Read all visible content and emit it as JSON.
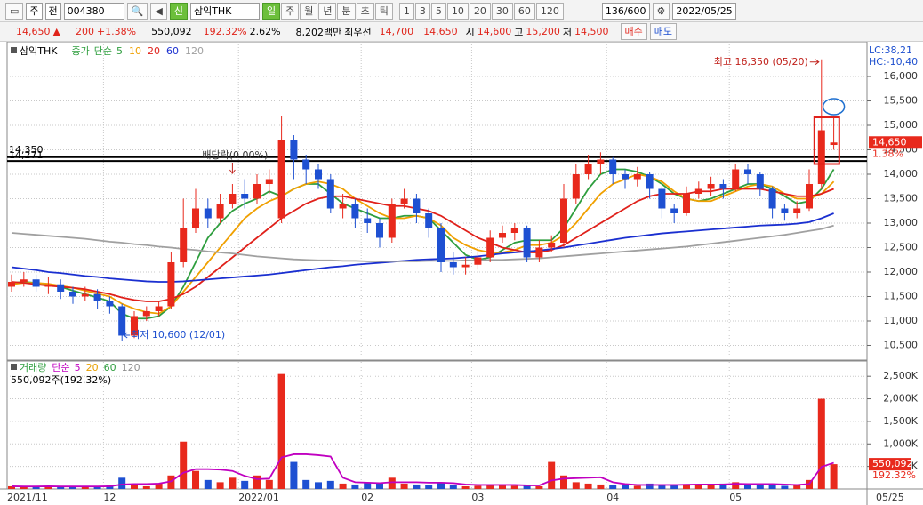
{
  "toolbar": {
    "period": "주",
    "prev": "전",
    "code": "004380",
    "badge": "신",
    "name": "삼익THK",
    "tabs": [
      "일",
      "주",
      "월",
      "년",
      "분",
      "초",
      "틱"
    ],
    "intervals": [
      "1",
      "3",
      "5",
      "10",
      "20",
      "30",
      "60",
      "120"
    ],
    "count": "136/600",
    "date": "2022/05/25"
  },
  "quote": {
    "price": "14,650",
    "arrow": "▲",
    "change": "200",
    "rate": "+1.38%",
    "volume": "550,092",
    "vol_ratio": "192.32%",
    "turnover": "2.62%",
    "amount": "8,202백만",
    "best_label": "최우선",
    "ask": "14,700",
    "bid": "14,650",
    "open_label": "시",
    "open": "14,600",
    "high_label": "고",
    "high": "15,200",
    "low_label": "저",
    "low": "14,500",
    "buy": "매수",
    "sell": "매도"
  },
  "chart_data": {
    "type": "candlestick",
    "title": "삼익THK",
    "legend_prefix": [
      "종가",
      "단순"
    ],
    "indicators": [
      "LC:38,21",
      "HC:-10,40"
    ],
    "categories": [
      "2021/11",
      null,
      null,
      null,
      null,
      null,
      null,
      null,
      "12",
      null,
      null,
      null,
      null,
      null,
      null,
      null,
      null,
      null,
      null,
      "2022/01",
      null,
      null,
      null,
      null,
      null,
      null,
      null,
      null,
      null,
      "02",
      null,
      null,
      null,
      null,
      null,
      null,
      null,
      null,
      "03",
      null,
      null,
      null,
      null,
      null,
      null,
      null,
      null,
      null,
      null,
      "04",
      null,
      null,
      null,
      null,
      null,
      null,
      null,
      null,
      null,
      "05",
      null,
      null,
      null,
      null,
      null,
      null,
      null,
      null
    ],
    "open": [
      11700,
      11800,
      11850,
      11700,
      11750,
      11600,
      11500,
      11550,
      11400,
      11300,
      10700,
      11100,
      11200,
      11300,
      12200,
      12900,
      13300,
      13100,
      13400,
      13600,
      13500,
      13800,
      13100,
      14700,
      14300,
      14100,
      13900,
      13300,
      13400,
      13100,
      13000,
      12700,
      13400,
      13500,
      13200,
      12900,
      12200,
      12100,
      12150,
      12300,
      12700,
      12800,
      12900,
      12300,
      12500,
      12600,
      13500,
      14000,
      14200,
      14300,
      14000,
      13900,
      14000,
      13700,
      13300,
      13200,
      13600,
      13700,
      13800,
      13700,
      14100,
      14000,
      13700,
      13300,
      13200,
      13300,
      13800,
      14600
    ],
    "high": [
      11950,
      12000,
      11950,
      11900,
      11850,
      11700,
      11700,
      11650,
      11500,
      11350,
      11200,
      11300,
      11400,
      12400,
      13500,
      13700,
      13500,
      13600,
      13800,
      13900,
      14000,
      14100,
      15200,
      14800,
      14400,
      14200,
      14000,
      13600,
      13500,
      13300,
      13100,
      13500,
      13700,
      13600,
      13300,
      13000,
      12400,
      12300,
      12450,
      12850,
      12950,
      13000,
      12950,
      12650,
      12750,
      13800,
      14200,
      14400,
      14450,
      14350,
      14100,
      14150,
      14050,
      13750,
      13400,
      13750,
      13850,
      13950,
      13900,
      14200,
      14200,
      14050,
      13750,
      13400,
      13450,
      14100,
      16350,
      15200
    ],
    "low": [
      11600,
      11700,
      11600,
      11550,
      11450,
      11350,
      11400,
      11250,
      11150,
      10600,
      10650,
      11000,
      11100,
      11250,
      12100,
      12800,
      12900,
      13000,
      13300,
      13300,
      13400,
      13600,
      13000,
      13900,
      13800,
      13700,
      13200,
      13100,
      12900,
      12800,
      12500,
      12600,
      13300,
      13000,
      12700,
      12000,
      11950,
      11950,
      12050,
      12200,
      12600,
      12650,
      12200,
      12200,
      12400,
      12500,
      13400,
      13900,
      14000,
      13800,
      13700,
      13750,
      13500,
      13100,
      13000,
      13150,
      13500,
      13550,
      13500,
      13650,
      13800,
      13550,
      13100,
      13050,
      13100,
      13250,
      13700,
      14500
    ],
    "close": [
      11800,
      11850,
      11700,
      11750,
      11600,
      11500,
      11550,
      11400,
      11300,
      10700,
      11100,
      11200,
      11300,
      12200,
      12900,
      13300,
      13100,
      13400,
      13600,
      13500,
      13800,
      13900,
      14700,
      14300,
      14100,
      13900,
      13300,
      13400,
      13100,
      13000,
      12700,
      13400,
      13500,
      13200,
      12900,
      12200,
      12100,
      12150,
      12300,
      12700,
      12800,
      12900,
      12300,
      12500,
      12600,
      13500,
      14000,
      14200,
      14300,
      14000,
      13900,
      14000,
      13700,
      13300,
      13200,
      13600,
      13700,
      13800,
      13700,
      14100,
      14000,
      13700,
      13300,
      13200,
      13300,
      13800,
      14900,
      14650
    ],
    "up_color": "#e8291c",
    "down_color": "#1e50d2",
    "series": [
      {
        "name": "5",
        "color": "#2e9e3e",
        "values": [
          11780,
          11800,
          11780,
          11750,
          11700,
          11620,
          11550,
          11480,
          11400,
          11150,
          11050,
          11050,
          11100,
          11300,
          11700,
          12200,
          12700,
          13000,
          13250,
          13400,
          13500,
          13650,
          13550,
          13700,
          13800,
          13800,
          13600,
          13400,
          13300,
          13200,
          13100,
          13100,
          13150,
          13150,
          13100,
          12850,
          12600,
          12350,
          12250,
          12300,
          12450,
          12600,
          12650,
          12650,
          12650,
          12900,
          13300,
          13700,
          14000,
          14100,
          14100,
          14050,
          13950,
          13800,
          13600,
          13500,
          13450,
          13500,
          13600,
          13700,
          13800,
          13800,
          13700,
          13550,
          13400,
          13450,
          13700,
          14100
        ]
      },
      {
        "name": "10",
        "color": "#f0a000",
        "values": [
          11750,
          11780,
          11780,
          11760,
          11720,
          11680,
          11620,
          11560,
          11500,
          11350,
          11250,
          11180,
          11150,
          11300,
          11600,
          11900,
          12200,
          12500,
          12800,
          13100,
          13300,
          13450,
          13550,
          13700,
          13800,
          13850,
          13800,
          13700,
          13500,
          13350,
          13200,
          13100,
          13100,
          13150,
          13100,
          12950,
          12700,
          12550,
          12450,
          12400,
          12400,
          12450,
          12550,
          12550,
          12600,
          12750,
          13000,
          13300,
          13600,
          13800,
          13900,
          14000,
          13950,
          13850,
          13650,
          13500,
          13450,
          13450,
          13550,
          13650,
          13750,
          13800,
          13750,
          13600,
          13500,
          13500,
          13600,
          13850
        ]
      },
      {
        "name": "20",
        "color": "#e0201a",
        "values": [
          11800,
          11780,
          11750,
          11720,
          11700,
          11680,
          11650,
          11600,
          11550,
          11480,
          11430,
          11400,
          11400,
          11450,
          11550,
          11700,
          11900,
          12100,
          12300,
          12500,
          12700,
          12900,
          13100,
          13250,
          13400,
          13500,
          13550,
          13550,
          13500,
          13450,
          13400,
          13350,
          13350,
          13300,
          13250,
          13150,
          13000,
          12850,
          12700,
          12600,
          12500,
          12450,
          12400,
          12400,
          12450,
          12550,
          12700,
          12850,
          13000,
          13150,
          13300,
          13450,
          13550,
          13600,
          13600,
          13600,
          13650,
          13650,
          13700,
          13700,
          13700,
          13700,
          13650,
          13600,
          13550,
          13550,
          13600,
          13700
        ]
      },
      {
        "name": "60",
        "color": "#1a2fd0",
        "values": [
          12100,
          12070,
          12040,
          12000,
          11980,
          11950,
          11920,
          11900,
          11870,
          11850,
          11830,
          11810,
          11800,
          11800,
          11810,
          11830,
          11850,
          11870,
          11890,
          11910,
          11930,
          11950,
          11980,
          12010,
          12040,
          12070,
          12100,
          12120,
          12150,
          12170,
          12190,
          12210,
          12230,
          12250,
          12260,
          12270,
          12280,
          12300,
          12320,
          12350,
          12380,
          12400,
          12420,
          12440,
          12470,
          12500,
          12540,
          12580,
          12620,
          12660,
          12700,
          12730,
          12760,
          12790,
          12810,
          12830,
          12850,
          12870,
          12890,
          12910,
          12930,
          12950,
          12960,
          12970,
          12990,
          13020,
          13100,
          13200
        ]
      },
      {
        "name": "120",
        "color": "#a0a0a0",
        "values": [
          12800,
          12780,
          12760,
          12740,
          12720,
          12700,
          12680,
          12650,
          12620,
          12600,
          12570,
          12550,
          12520,
          12500,
          12470,
          12450,
          12420,
          12400,
          12380,
          12350,
          12320,
          12300,
          12280,
          12260,
          12250,
          12240,
          12240,
          12230,
          12230,
          12220,
          12220,
          12220,
          12220,
          12220,
          12230,
          12230,
          12230,
          12240,
          12240,
          12250,
          12250,
          12260,
          12270,
          12280,
          12300,
          12320,
          12340,
          12360,
          12380,
          12400,
          12420,
          12440,
          12460,
          12480,
          12500,
          12520,
          12550,
          12580,
          12610,
          12640,
          12670,
          12700,
          12730,
          12760,
          12800,
          12840,
          12880,
          12950
        ]
      }
    ],
    "ylim": [
      10236,
      16655
    ],
    "yticks": [
      {
        "value": 10500,
        "label": "10,500"
      },
      {
        "value": 11000,
        "label": "11,000"
      },
      {
        "value": 11500,
        "label": "11,500"
      },
      {
        "value": 12000,
        "label": "12,000"
      },
      {
        "value": 12500,
        "label": "12,500"
      },
      {
        "value": 13000,
        "label": "13,000"
      },
      {
        "value": 13500,
        "label": "13,500"
      },
      {
        "value": 14000,
        "label": "14,000"
      },
      {
        "value": 14500,
        "label": "14,500"
      },
      {
        "value": 15000,
        "label": "15,000"
      },
      {
        "value": 15500,
        "label": "15,500"
      },
      {
        "value": 16000,
        "label": "16,000"
      }
    ],
    "grid": true,
    "levels": [
      {
        "value": 14350,
        "label": "14,350"
      },
      {
        "value": 14271,
        "label": "14,271"
      }
    ],
    "annotations": [
      "최고 16,350 (05/20)",
      "최저 10,600 (12/01)",
      "배당락(0.00%)"
    ],
    "last_price": {
      "value": 14650,
      "label": "14,650",
      "change": "1.38%"
    },
    "volume": {
      "title": "거래량",
      "legend_prefix": "단순",
      "values": [
        60000,
        40000,
        50000,
        70000,
        40000,
        50000,
        60000,
        40000,
        80000,
        250000,
        90000,
        60000,
        120000,
        300000,
        1050000,
        400000,
        200000,
        150000,
        250000,
        180000,
        300000,
        200000,
        2550000,
        600000,
        200000,
        150000,
        180000,
        120000,
        100000,
        150000,
        120000,
        250000,
        120000,
        100000,
        80000,
        150000,
        90000,
        60000,
        70000,
        100000,
        90000,
        70000,
        80000,
        60000,
        600000,
        300000,
        150000,
        120000,
        100000,
        80000,
        90000,
        70000,
        120000,
        100000,
        80000,
        110000,
        90000,
        100000,
        120000,
        150000,
        80000,
        100000,
        90000,
        70000,
        100000,
        200000,
        2000000,
        550092
      ],
      "series": [
        {
          "name": "5",
          "color": "#c000c0",
          "values": [
            60000,
            55000,
            55000,
            60000,
            55000,
            55000,
            55000,
            55000,
            60000,
            100000,
            110000,
            110000,
            120000,
            170000,
            360000,
            440000,
            440000,
            430000,
            400000,
            290000,
            220000,
            230000,
            700000,
            770000,
            770000,
            750000,
            720000,
            250000,
            150000,
            140000,
            130000,
            150000,
            150000,
            150000,
            140000,
            140000,
            130000,
            100000,
            90000,
            90000,
            90000,
            90000,
            80000,
            80000,
            190000,
            230000,
            240000,
            250000,
            260000,
            150000,
            110000,
            90000,
            90000,
            90000,
            90000,
            95000,
            100000,
            100000,
            100000,
            115000,
            110000,
            110000,
            110000,
            100000,
            90000,
            110000,
            490000,
            580000
          ]
        }
      ],
      "legend_extra": [
        {
          "name": "20",
          "color": "#e8a000"
        },
        {
          "name": "60",
          "color": "#2e9e3e"
        },
        {
          "name": "120",
          "color": "#909090"
        }
      ],
      "ylim": [
        0,
        2760000
      ],
      "yticks": [
        {
          "value": 500000,
          "label": "500K"
        },
        {
          "value": 1000000,
          "label": "1,000K"
        },
        {
          "value": 1500000,
          "label": "1,500K"
        },
        {
          "value": 2000000,
          "label": "2,000K"
        },
        {
          "value": 2500000,
          "label": "2,500K"
        }
      ],
      "summary": "550,092주(192.32%)",
      "last": {
        "value": 550092,
        "label": "550,092",
        "change": "192.32%"
      }
    },
    "last_date": "05/25"
  }
}
